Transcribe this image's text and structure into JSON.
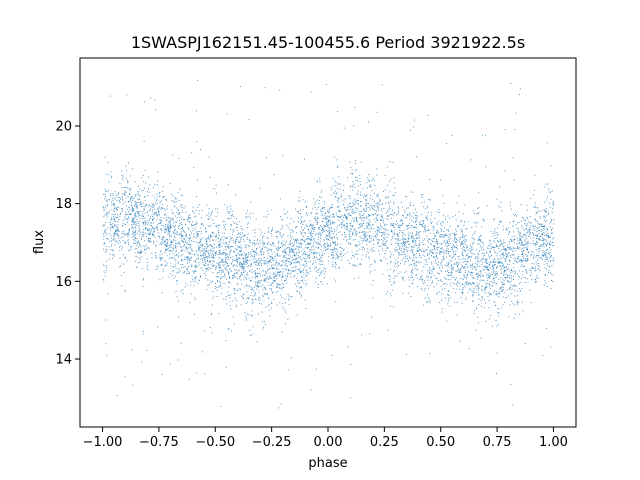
{
  "chart_data": {
    "type": "scatter",
    "title": "1SWASPJ162151.45-100455.6 Period 3921922.5s",
    "xlabel": "phase",
    "ylabel": "flux",
    "xlim": [
      -1.1,
      1.1
    ],
    "ylim": [
      12.25,
      21.75
    ],
    "xticks": [
      -1.0,
      -0.75,
      -0.5,
      -0.25,
      0.0,
      0.25,
      0.5,
      0.75,
      1.0
    ],
    "xtick_labels": [
      "−1.00",
      "−0.75",
      "−0.50",
      "−0.25",
      "0.00",
      "0.25",
      "0.50",
      "0.75",
      "1.00"
    ],
    "yticks": [
      14,
      16,
      18,
      20
    ],
    "ytick_labels": [
      "14",
      "16",
      "18",
      "20"
    ],
    "grid": false,
    "point_color": "#1f77b4",
    "x_range": [
      -1.0,
      1.0
    ],
    "period_phase": 1.0,
    "trend_profile": [
      {
        "x": -1.0,
        "y": 17.4
      },
      {
        "x": -0.9,
        "y": 17.6
      },
      {
        "x": -0.8,
        "y": 17.5
      },
      {
        "x": -0.7,
        "y": 17.1
      },
      {
        "x": -0.6,
        "y": 16.9
      },
      {
        "x": -0.5,
        "y": 16.7
      },
      {
        "x": -0.4,
        "y": 16.6
      },
      {
        "x": -0.3,
        "y": 16.3
      },
      {
        "x": -0.2,
        "y": 16.5
      },
      {
        "x": -0.1,
        "y": 16.9
      },
      {
        "x": 0.0,
        "y": 17.4
      }
    ],
    "scatter_spread": 0.6,
    "outlier_range": [
      12.7,
      21.2
    ]
  }
}
